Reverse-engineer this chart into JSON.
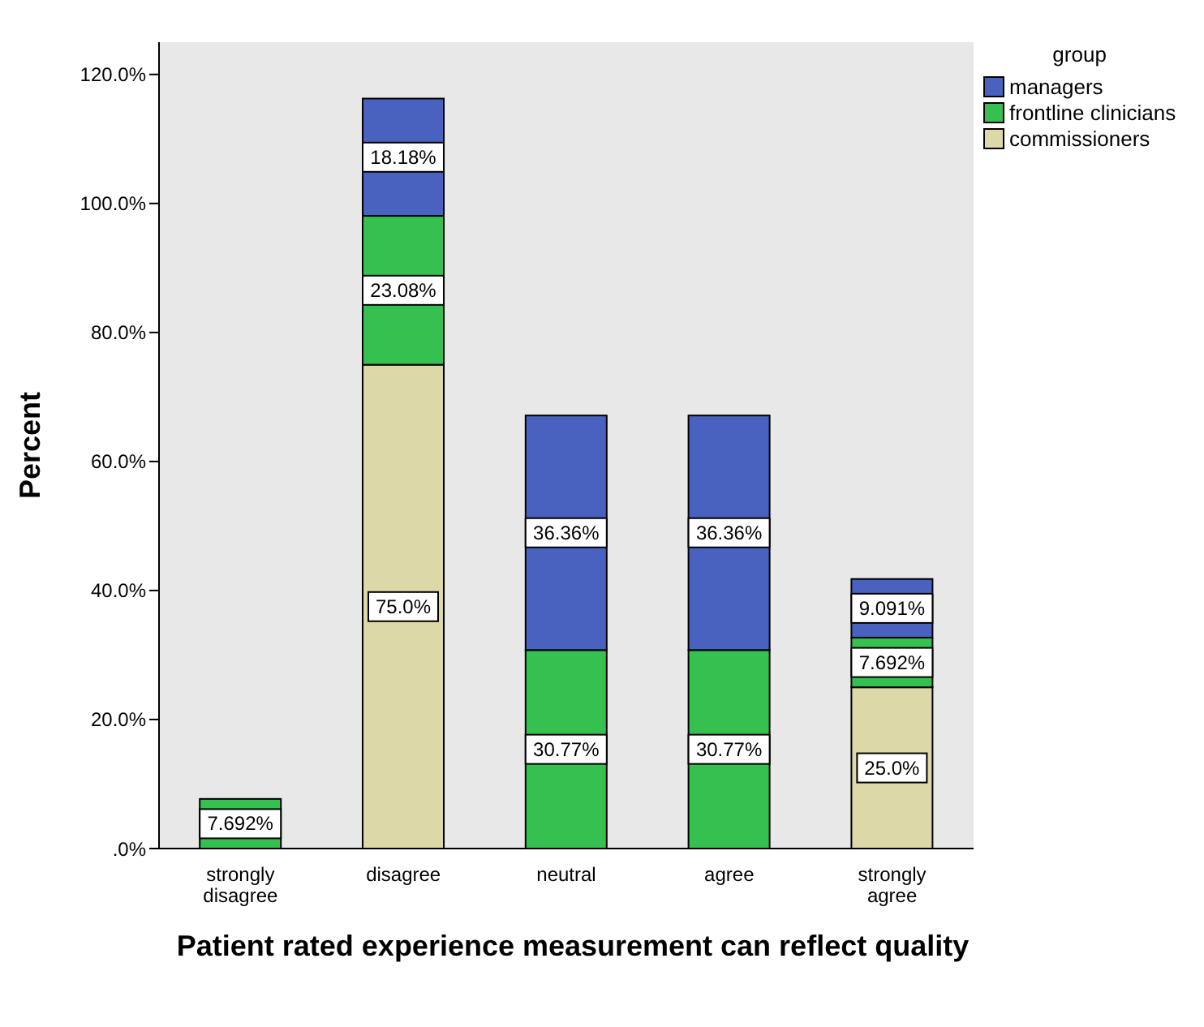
{
  "chart_data": {
    "type": "bar",
    "stacked": true,
    "xlabel": "Patient rated experience measurement can reflect quality",
    "ylabel": "Percent",
    "legend_title": "group",
    "legend": "right",
    "grid": false,
    "categories": [
      "strongly disagree",
      "disagree",
      "neutral",
      "agree",
      "strongly agree"
    ],
    "ylim": [
      0,
      125
    ],
    "yticks": [
      {
        "value": 0,
        "label": ".0%"
      },
      {
        "value": 20,
        "label": "20.0%"
      },
      {
        "value": 40,
        "label": "40.0%"
      },
      {
        "value": 60,
        "label": "60.0%"
      },
      {
        "value": 80,
        "label": "80.0%"
      },
      {
        "value": 100,
        "label": "100.0%"
      },
      {
        "value": 120,
        "label": "120.0%"
      }
    ],
    "series": [
      {
        "name": "commissioners",
        "color": "#dcd8a8",
        "values": [
          null,
          75.0,
          null,
          null,
          25.0
        ],
        "value_labels": [
          null,
          "75.0%",
          null,
          null,
          "25.0%"
        ]
      },
      {
        "name": "frontline clinicians",
        "color": "#36c050",
        "values": [
          7.692,
          23.08,
          30.77,
          30.77,
          7.692
        ],
        "value_labels": [
          "7.692%",
          "23.08%",
          "30.77%",
          "30.77%",
          "7.692%"
        ]
      },
      {
        "name": "managers",
        "color": "#4a62bf",
        "values": [
          null,
          18.18,
          36.36,
          36.36,
          9.091
        ],
        "value_labels": [
          null,
          "18.18%",
          "36.36%",
          "36.36%",
          "9.091%"
        ]
      }
    ]
  }
}
